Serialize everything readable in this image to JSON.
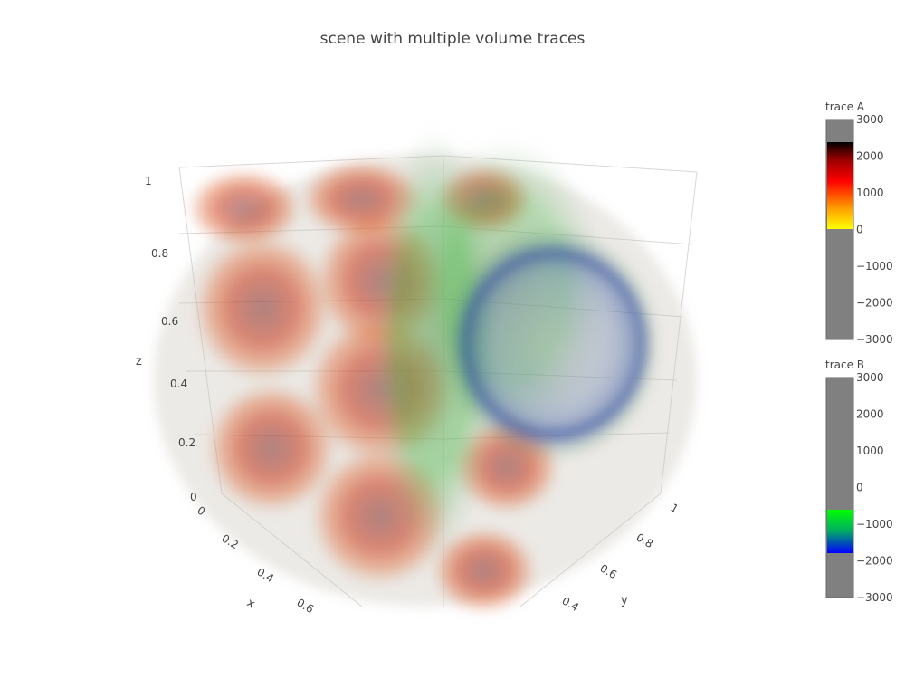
{
  "chart_data": {
    "type": "volume",
    "title": "scene with multiple volume traces",
    "axes": {
      "x": {
        "title": "x",
        "ticks": [
          "0",
          "0.2",
          "0.4",
          "0.6"
        ]
      },
      "y": {
        "title": "y",
        "ticks": [
          "0.4",
          "0.6",
          "0.8",
          "1"
        ]
      },
      "z": {
        "title": "z",
        "ticks": [
          "0",
          "0.2",
          "0.4",
          "0.6",
          "0.8",
          "1"
        ]
      }
    },
    "traces": [
      {
        "name": "trace A",
        "colorbar_range": [
          -3000,
          3000
        ],
        "colorbar_ticks": [
          "3000",
          "2000",
          "1000",
          "0",
          "−1000",
          "−2000",
          "−3000"
        ],
        "colorscale_active_range": [
          0,
          2400
        ],
        "colorscale": [
          "#ffff00",
          "#ff9900",
          "#ff0000",
          "#990000",
          "#000000"
        ]
      },
      {
        "name": "trace B",
        "colorbar_range": [
          -3000,
          3000
        ],
        "colorbar_ticks": [
          "3000",
          "2000",
          "1000",
          "0",
          "−1000",
          "−2000",
          "−3000"
        ],
        "colorscale_active_range": [
          -1800,
          -600
        ],
        "colorscale": [
          "#0000ff",
          "#00aa66",
          "#00ff00"
        ]
      }
    ],
    "legend_position": "right"
  }
}
